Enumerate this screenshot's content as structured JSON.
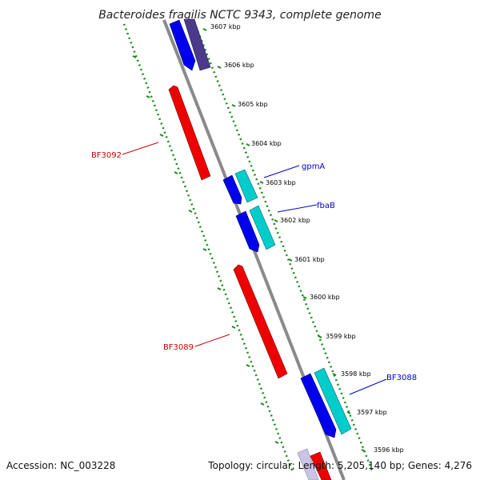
{
  "title": "Bacteroides fragilis NCTC 9343, complete genome",
  "footer": {
    "accession": "Accession: NC_003228",
    "summary": "Topology: circular; Length: 5,205,140 bp; Genes: 4,276"
  },
  "ticks": [
    "3607 kbp",
    "3606 kbp",
    "3605 kbp",
    "3604 kbp",
    "3603 kbp",
    "3602 kbp",
    "3601 kbp",
    "3600 kbp",
    "3599 kbp",
    "3598 kbp",
    "3597 kbp",
    "3596 kbp"
  ],
  "gene_labels": [
    {
      "text": "gpmA",
      "color": "#0000cc"
    },
    {
      "text": "fbaB",
      "color": "#0000cc"
    },
    {
      "text": "BF3088",
      "color": "#0000cc"
    },
    {
      "text": "BF3092",
      "color": "#cc0000"
    },
    {
      "text": "BF3089",
      "color": "#cc0000"
    }
  ],
  "colors": {
    "backbone": "#8a8a8a",
    "dotted_track": "#1a8a1a",
    "forward_gene": "#ee0000",
    "reverse_gene": "#0000ee",
    "reverse_cds": "#00cccc",
    "purple_gene": "#4b3a8c"
  }
}
